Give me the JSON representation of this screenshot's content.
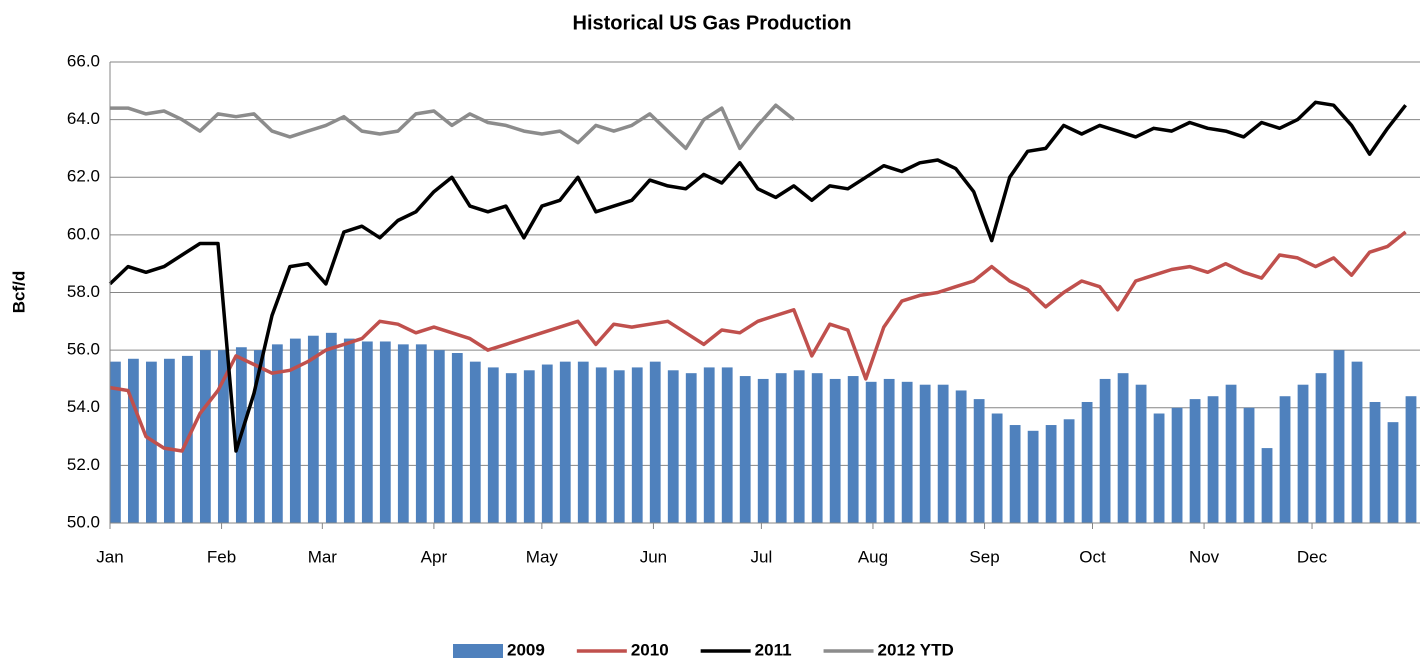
{
  "chart_data": {
    "type": "line",
    "title": "Historical US Gas Production",
    "y_label": "Bcf/d",
    "x": [
      0,
      5,
      10,
      15,
      20,
      25,
      30,
      35,
      40,
      45,
      50,
      55,
      60,
      65,
      70,
      75,
      80,
      85,
      90,
      95,
      100,
      105,
      110,
      115,
      120,
      125,
      130,
      135,
      140,
      145,
      150,
      155,
      160,
      165,
      170,
      175,
      180,
      185,
      190,
      195,
      200,
      205,
      210,
      215,
      220,
      225,
      230,
      235,
      240,
      245,
      250,
      255,
      260,
      265,
      270,
      275,
      280,
      285,
      290,
      295,
      300,
      305,
      310,
      315,
      320,
      325,
      330,
      335,
      340,
      345,
      350,
      355,
      360
    ],
    "xlim": [
      0,
      364
    ],
    "xticks": [
      {
        "value": 0,
        "label": "Jan"
      },
      {
        "value": 31,
        "label": "Feb"
      },
      {
        "value": 59,
        "label": "Mar"
      },
      {
        "value": 90,
        "label": "Apr"
      },
      {
        "value": 120,
        "label": "May"
      },
      {
        "value": 151,
        "label": "Jun"
      },
      {
        "value": 181,
        "label": "Jul"
      },
      {
        "value": 212,
        "label": "Aug"
      },
      {
        "value": 243,
        "label": "Sep"
      },
      {
        "value": 273,
        "label": "Oct"
      },
      {
        "value": 304,
        "label": "Nov"
      },
      {
        "value": 334,
        "label": "Dec"
      }
    ],
    "ylim": [
      50,
      66
    ],
    "yticks": [
      {
        "value": 50,
        "label": "50.0"
      },
      {
        "value": 52,
        "label": "52.0"
      },
      {
        "value": 54,
        "label": "54.0"
      },
      {
        "value": 56,
        "label": "56.0"
      },
      {
        "value": 58,
        "label": "58.0"
      },
      {
        "value": 60,
        "label": "60.0"
      },
      {
        "value": 62,
        "label": "62.0"
      },
      {
        "value": 64,
        "label": "64.0"
      },
      {
        "value": 66,
        "label": "66.0"
      }
    ],
    "grid": true,
    "legend": "bottom",
    "series": [
      {
        "name": "2009",
        "type": "bar",
        "color": "#4f81bd",
        "values": [
          55.6,
          55.7,
          55.6,
          55.7,
          55.8,
          56.0,
          56.0,
          56.1,
          56.0,
          56.2,
          56.4,
          56.5,
          56.6,
          56.4,
          56.3,
          56.3,
          56.2,
          56.2,
          56.0,
          55.9,
          55.6,
          55.4,
          55.2,
          55.3,
          55.5,
          55.6,
          55.6,
          55.4,
          55.3,
          55.4,
          55.6,
          55.3,
          55.2,
          55.4,
          55.4,
          55.1,
          55.0,
          55.2,
          55.3,
          55.2,
          55.0,
          55.1,
          54.9,
          55.0,
          54.9,
          54.8,
          54.8,
          54.6,
          54.3,
          53.8,
          53.4,
          53.2,
          53.4,
          53.6,
          54.2,
          55.0,
          55.2,
          54.8,
          53.8,
          54.0,
          54.3,
          54.4,
          54.8,
          54.0,
          52.6,
          54.4,
          54.8,
          55.2,
          56.0,
          55.6,
          54.2,
          53.5,
          54.4
        ]
      },
      {
        "name": "2010",
        "type": "line",
        "color": "#c0504d",
        "values": [
          54.7,
          54.6,
          53.0,
          52.6,
          52.5,
          53.8,
          54.6,
          55.8,
          55.5,
          55.2,
          55.3,
          55.6,
          56.0,
          56.2,
          56.4,
          57.0,
          56.9,
          56.6,
          56.8,
          56.6,
          56.4,
          56.0,
          56.2,
          56.4,
          56.6,
          56.8,
          57.0,
          56.2,
          56.9,
          56.8,
          56.9,
          57.0,
          56.6,
          56.2,
          56.7,
          56.6,
          57.0,
          57.2,
          57.4,
          55.8,
          56.9,
          56.7,
          55.0,
          56.8,
          57.7,
          57.9,
          58.0,
          58.2,
          58.4,
          58.9,
          58.4,
          58.1,
          57.5,
          58.0,
          58.4,
          58.2,
          57.4,
          58.4,
          58.6,
          58.8,
          58.9,
          58.7,
          59.0,
          58.7,
          58.5,
          59.3,
          59.2,
          58.9,
          59.2,
          58.6,
          59.4,
          59.6,
          60.1
        ]
      },
      {
        "name": "2011",
        "type": "line",
        "color": "#000000",
        "values": [
          58.3,
          58.9,
          58.7,
          58.9,
          59.3,
          59.7,
          59.7,
          52.5,
          54.5,
          57.2,
          58.9,
          59.0,
          58.3,
          60.1,
          60.3,
          59.9,
          60.5,
          60.8,
          61.5,
          62.0,
          61.0,
          60.8,
          61.0,
          59.9,
          61.0,
          61.2,
          62.0,
          60.8,
          61.0,
          61.2,
          61.9,
          61.7,
          61.6,
          62.1,
          61.8,
          62.5,
          61.6,
          61.3,
          61.7,
          61.2,
          61.7,
          61.6,
          62.0,
          62.4,
          62.2,
          62.5,
          62.6,
          62.3,
          61.5,
          59.8,
          62.0,
          62.9,
          63.0,
          63.8,
          63.5,
          63.8,
          63.6,
          63.4,
          63.7,
          63.6,
          63.9,
          63.7,
          63.6,
          63.4,
          63.9,
          63.7,
          64.0,
          64.6,
          64.5,
          63.8,
          62.8,
          63.7,
          64.5
        ]
      },
      {
        "name": "2012 YTD",
        "type": "line",
        "color": "#8c8c8c",
        "values": [
          64.4,
          64.4,
          64.2,
          64.3,
          64.0,
          63.6,
          64.2,
          64.1,
          64.2,
          63.6,
          63.4,
          63.6,
          63.8,
          64.1,
          63.6,
          63.5,
          63.6,
          64.2,
          64.3,
          63.8,
          64.2,
          63.9,
          63.8,
          63.6,
          63.5,
          63.6,
          63.2,
          63.8,
          63.6,
          63.8,
          64.2,
          63.6,
          63.0,
          64.0,
          64.4,
          63.0,
          63.8,
          64.5,
          64.0,
          null,
          null,
          null,
          null,
          null,
          null,
          null,
          null,
          null,
          null,
          null,
          null,
          null,
          null,
          null,
          null,
          null,
          null,
          null,
          null,
          null,
          null,
          null,
          null,
          null,
          null,
          null,
          null,
          null,
          null,
          null,
          null,
          null,
          null
        ]
      }
    ]
  }
}
